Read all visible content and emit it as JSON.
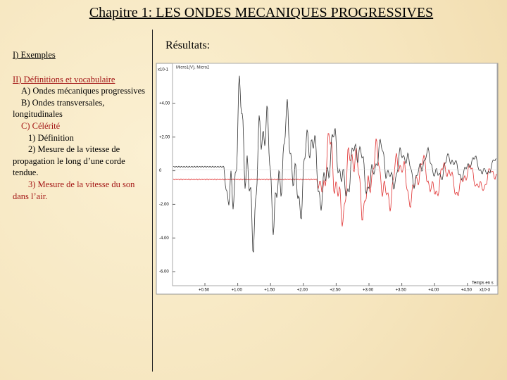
{
  "header": {
    "title": "Chapitre 1: LES ONDES MECANIQUES PROGRESSIVES"
  },
  "outline": {
    "section1": "I) Exemples",
    "section2": "II) Définitions et vocabulaire",
    "items": [
      "A) Ondes mécaniques progressives",
      "B) Ondes transversales, longitudinales",
      "C) Célérité",
      "1) Définition",
      "2) Mesure de la vitesse de propagation le long d’une corde tendue.",
      "3) Mesure de la vitesse du son dans l’air."
    ]
  },
  "results": {
    "title": "Résultats:",
    "graph": {
      "legend": "Micro1(V), Micro2",
      "y_scale": "x10-1",
      "x_label": "Temps en s",
      "x_scale": "x10-3",
      "y_labels": [
        "+4.00",
        "+2.00",
        "0",
        "-2.00",
        "-4.00",
        "-6.00"
      ],
      "x_labels": [
        "+0.50",
        "+1.00",
        "+1.50",
        "+2.00",
        "+2.50",
        "+3.00",
        "+3.50",
        "+4.00",
        "+4.50"
      ]
    }
  }
}
